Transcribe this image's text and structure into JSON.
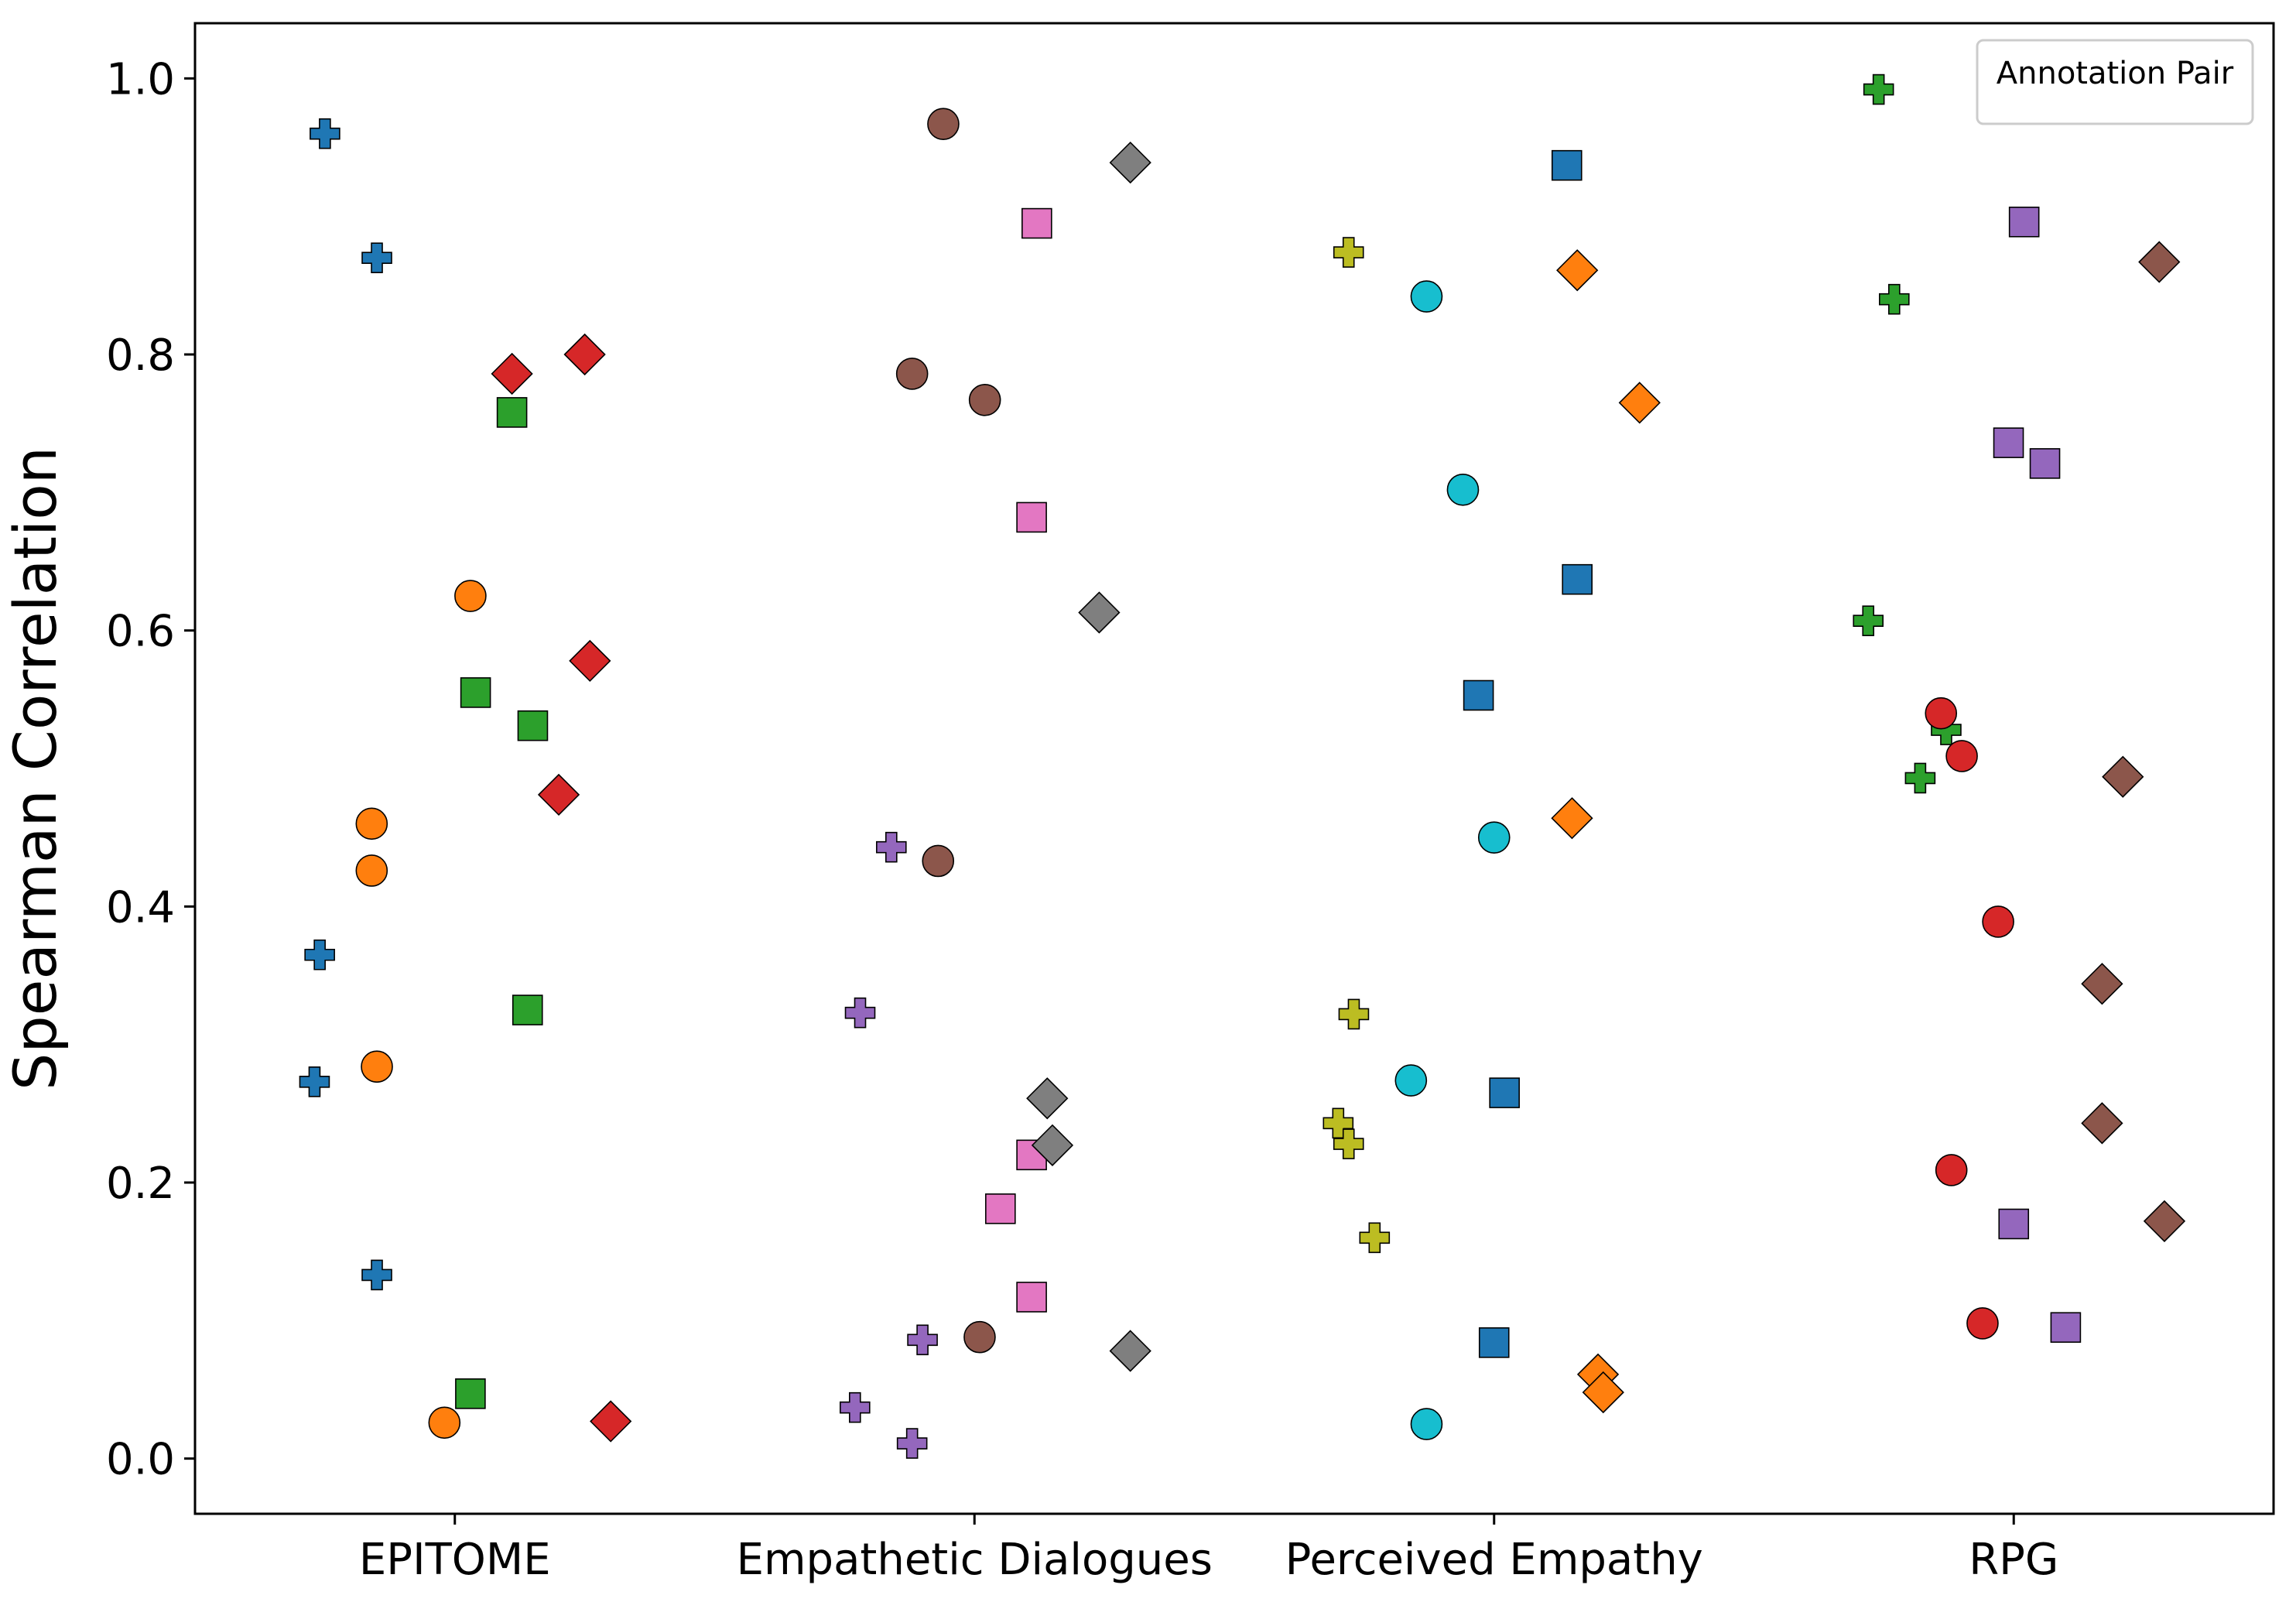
{
  "chart_data": {
    "type": "scatter",
    "title": "",
    "xlabel": "",
    "ylabel": "Spearman Correlation",
    "categories": [
      "EPITOME",
      "Empathetic Dialogues",
      "Perceived Empathy",
      "RPG"
    ],
    "ylim": [
      -0.04,
      1.04
    ],
    "yticks": [
      "0.0",
      "0.2",
      "0.4",
      "0.6",
      "0.8",
      "1.0"
    ],
    "grid": false,
    "legend": {
      "title": "Annotation Pair",
      "placement": "top-right"
    },
    "series": [
      {
        "name": "",
        "category": "EPITOME",
        "marker": "plus",
        "color": "#1f77b4",
        "points": [
          [
            -0.25,
            0.96
          ],
          [
            -0.15,
            0.87
          ],
          [
            -0.26,
            0.365
          ],
          [
            -0.27,
            0.273
          ],
          [
            -0.15,
            0.133
          ]
        ]
      },
      {
        "name": "",
        "category": "EPITOME",
        "marker": "circle",
        "color": "#ff7f0e",
        "points": [
          [
            0.03,
            0.625
          ],
          [
            -0.16,
            0.46
          ],
          [
            -0.16,
            0.426
          ],
          [
            -0.15,
            0.284
          ],
          [
            -0.02,
            0.026
          ]
        ]
      },
      {
        "name": "",
        "category": "EPITOME",
        "marker": "square",
        "color": "#2ca02c",
        "points": [
          [
            0.11,
            0.758
          ],
          [
            0.04,
            0.555
          ],
          [
            0.15,
            0.531
          ],
          [
            0.14,
            0.325
          ],
          [
            0.03,
            0.047
          ]
        ]
      },
      {
        "name": "",
        "category": "EPITOME",
        "marker": "diamond",
        "color": "#d62728",
        "points": [
          [
            0.25,
            0.8
          ],
          [
            0.11,
            0.786
          ],
          [
            0.26,
            0.578
          ],
          [
            0.2,
            0.481
          ],
          [
            0.3,
            0.027
          ]
        ]
      },
      {
        "name": "",
        "category": "Empathetic Dialogues",
        "marker": "plus",
        "color": "#9467bd",
        "points": [
          [
            -0.16,
            0.443
          ],
          [
            -0.22,
            0.323
          ],
          [
            -0.1,
            0.086
          ],
          [
            -0.23,
            0.037
          ],
          [
            -0.12,
            0.011
          ]
        ]
      },
      {
        "name": "",
        "category": "Empathetic Dialogues",
        "marker": "circle",
        "color": "#8c564b",
        "points": [
          [
            -0.06,
            0.967
          ],
          [
            -0.12,
            0.786
          ],
          [
            0.02,
            0.767
          ],
          [
            -0.07,
            0.433
          ],
          [
            0.01,
            0.088
          ]
        ]
      },
      {
        "name": "",
        "category": "Empathetic Dialogues",
        "marker": "square",
        "color": "#e377c2",
        "points": [
          [
            0.12,
            0.895
          ],
          [
            0.11,
            0.682
          ],
          [
            0.11,
            0.22
          ],
          [
            0.05,
            0.181
          ],
          [
            0.11,
            0.117
          ]
        ]
      },
      {
        "name": "",
        "category": "Empathetic Dialogues",
        "marker": "diamond",
        "color": "#7f7f7f",
        "points": [
          [
            0.3,
            0.939
          ],
          [
            0.24,
            0.613
          ],
          [
            0.14,
            0.261
          ],
          [
            0.15,
            0.227
          ],
          [
            0.3,
            0.078
          ]
        ]
      },
      {
        "name": "",
        "category": "Perceived Empathy",
        "marker": "plus",
        "color": "#bcbd22",
        "points": [
          [
            -0.28,
            0.874
          ],
          [
            -0.27,
            0.322
          ],
          [
            -0.3,
            0.243
          ],
          [
            -0.28,
            0.228
          ],
          [
            -0.23,
            0.16
          ]
        ]
      },
      {
        "name": "",
        "category": "Perceived Empathy",
        "marker": "circle",
        "color": "#17becf",
        "points": [
          [
            -0.13,
            0.842
          ],
          [
            -0.06,
            0.702
          ],
          [
            0.0,
            0.45
          ],
          [
            -0.16,
            0.274
          ],
          [
            -0.13,
            0.025
          ]
        ]
      },
      {
        "name": "",
        "category": "Perceived Empathy",
        "marker": "square",
        "color": "#1f77b4",
        "points": [
          [
            0.14,
            0.937
          ],
          [
            0.16,
            0.637
          ],
          [
            -0.03,
            0.553
          ],
          [
            0.02,
            0.265
          ],
          [
            0.0,
            0.084
          ]
        ]
      },
      {
        "name": "",
        "category": "Perceived Empathy",
        "marker": "diamond",
        "color": "#ff7f0e",
        "points": [
          [
            0.16,
            0.861
          ],
          [
            0.28,
            0.765
          ],
          [
            0.15,
            0.464
          ],
          [
            0.2,
            0.061
          ],
          [
            0.21,
            0.048
          ]
        ]
      },
      {
        "name": "",
        "category": "RPG",
        "marker": "plus",
        "color": "#2ca02c",
        "points": [
          [
            -0.26,
            0.992
          ],
          [
            -0.23,
            0.84
          ],
          [
            -0.28,
            0.607
          ],
          [
            -0.13,
            0.528
          ],
          [
            -0.18,
            0.493
          ]
        ]
      },
      {
        "name": "",
        "category": "RPG",
        "marker": "circle",
        "color": "#d62728",
        "points": [
          [
            -0.14,
            0.54
          ],
          [
            -0.1,
            0.509
          ],
          [
            -0.03,
            0.389
          ],
          [
            -0.12,
            0.209
          ],
          [
            -0.06,
            0.098
          ]
        ]
      },
      {
        "name": "",
        "category": "RPG",
        "marker": "square",
        "color": "#9467bd",
        "points": [
          [
            0.02,
            0.896
          ],
          [
            -0.01,
            0.736
          ],
          [
            0.06,
            0.721
          ],
          [
            0.0,
            0.17
          ],
          [
            0.1,
            0.095
          ]
        ]
      },
      {
        "name": "",
        "category": "RPG",
        "marker": "diamond",
        "color": "#8c564b",
        "points": [
          [
            0.28,
            0.867
          ],
          [
            0.21,
            0.494
          ],
          [
            0.17,
            0.344
          ],
          [
            0.17,
            0.243
          ],
          [
            0.29,
            0.172
          ]
        ]
      }
    ]
  }
}
